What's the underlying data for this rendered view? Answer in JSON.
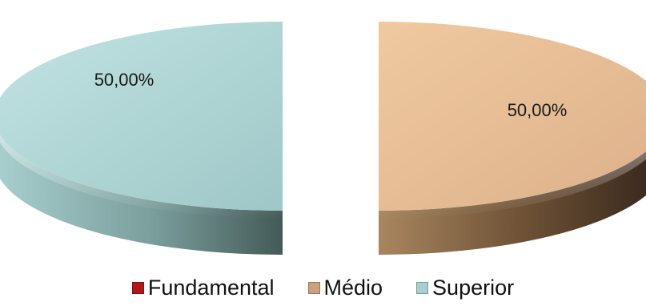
{
  "chart_data": {
    "type": "pie",
    "style": "3d-exploded",
    "categories": [
      "Fundamental",
      "Médio",
      "Superior"
    ],
    "values": [
      0,
      50,
      50
    ],
    "labels": [
      "",
      "50,00%",
      "50,00%"
    ],
    "colors": [
      "#b01818",
      "#c9a27c",
      "#a7cfcf"
    ],
    "title": "",
    "legend_position": "bottom"
  }
}
